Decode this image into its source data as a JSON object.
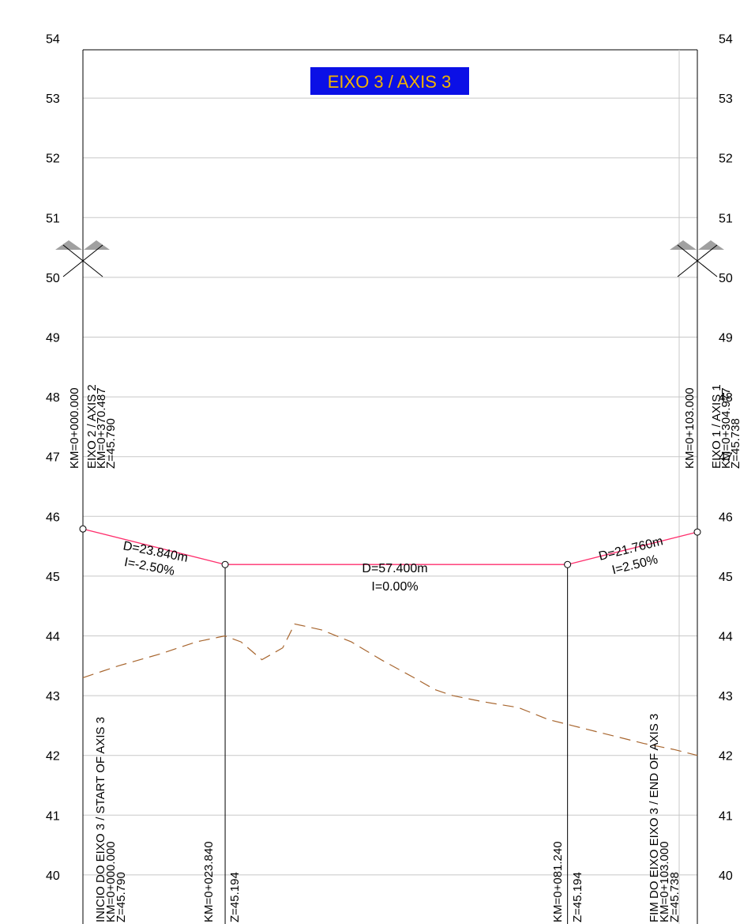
{
  "title": "EIXO 3 / AXIS 3",
  "colors": {
    "title_bg": "#0b10e6",
    "title_text": "#f2b400",
    "grade_line": "#ff2f6d",
    "terrain_line": "#a8662f",
    "grid": "#c8c8c8",
    "frame": "#000000"
  },
  "elevations": [
    "54",
    "53",
    "52",
    "51",
    "50",
    "49",
    "48",
    "47",
    "46",
    "45",
    "44",
    "43",
    "42",
    "41",
    "40"
  ],
  "intersections": {
    "start": {
      "station": "KM=0+000.000",
      "axis": "EIXO 2 / AXIS 2",
      "axis_km": "KM=0+370.487",
      "axis_z": "Z=45.790"
    },
    "end": {
      "station": "KM=0+103.000",
      "axis": "EIXO 1 / AXIS 1",
      "axis_km": "KM=0+304.977",
      "axis_z": "Z=45.738"
    }
  },
  "segments": [
    {
      "d": "D=23.840m",
      "i": "I=-2.50%"
    },
    {
      "d": "D=57.400m",
      "i": "I=0.00%"
    },
    {
      "d": "D=21.760m",
      "i": "I=2.50%"
    }
  ],
  "bottom_labels": {
    "start": {
      "name": "INICIO DO EIXO 3 / START OF AXIS 3",
      "km": "KM=0+000.000",
      "z": "Z=45.790"
    },
    "pvi1": {
      "km": "KM=0+023.840",
      "z": "Z=45.194"
    },
    "pvi2": {
      "km": "KM=0+081.240",
      "z": "Z=45.194"
    },
    "end": {
      "name": "FIM DO EIXO EIXO 3 / END OF AXIS 3",
      "km": "KM=0+103.000",
      "z": "Z=45.738"
    }
  },
  "chart_data": {
    "type": "line",
    "ylim": [
      40,
      54
    ],
    "xlim": [
      0,
      103
    ],
    "series": [
      {
        "values": [
          [
            0,
            45.79
          ],
          [
            23.84,
            45.194
          ],
          [
            81.24,
            45.194
          ],
          [
            103.0,
            45.738
          ]
        ]
      },
      {
        "values": [
          [
            0,
            43.3
          ],
          [
            6,
            43.5
          ],
          [
            13,
            43.7
          ],
          [
            19,
            43.9
          ],
          [
            23.8,
            44.0
          ],
          [
            26.5,
            43.9
          ],
          [
            30,
            43.6
          ],
          [
            33.5,
            43.8
          ],
          [
            35.5,
            44.2
          ],
          [
            40,
            44.1
          ],
          [
            45,
            43.9
          ],
          [
            50,
            43.6
          ],
          [
            55.5,
            43.3
          ],
          [
            59,
            43.1
          ],
          [
            62,
            43.0
          ],
          [
            67,
            42.9
          ],
          [
            73,
            42.8
          ],
          [
            78,
            42.6
          ],
          [
            82,
            42.5
          ],
          [
            86,
            42.4
          ],
          [
            90,
            42.3
          ],
          [
            94,
            42.2
          ],
          [
            99,
            42.1
          ],
          [
            103,
            42.0
          ]
        ]
      }
    ]
  }
}
